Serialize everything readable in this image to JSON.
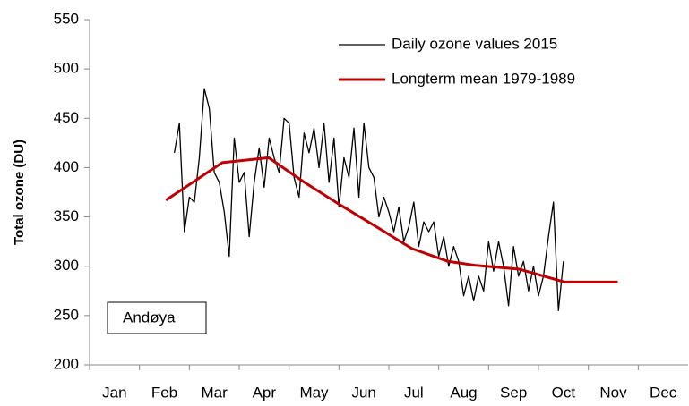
{
  "chart_data": {
    "type": "line",
    "ylabel": "Total ozone  (DU)",
    "annotation": "Andøya",
    "categories": [
      "Jan",
      "Feb",
      "Mar",
      "Apr",
      "May",
      "Jun",
      "Jul",
      "Aug",
      "Sep",
      "Oct",
      "Nov",
      "Dec"
    ],
    "xlim": [
      0,
      12
    ],
    "ylim": [
      200,
      550
    ],
    "yticks": [
      200,
      250,
      300,
      350,
      400,
      450,
      500,
      550
    ],
    "grid": false,
    "legend": "upper right",
    "series": [
      {
        "name": "Daily ozone values 2015",
        "color": "#000000",
        "x": [
          1.7,
          1.8,
          1.9,
          2.0,
          2.1,
          2.2,
          2.3,
          2.4,
          2.5,
          2.6,
          2.7,
          2.8,
          2.9,
          3.0,
          3.1,
          3.2,
          3.3,
          3.4,
          3.5,
          3.6,
          3.7,
          3.8,
          3.9,
          4.0,
          4.1,
          4.2,
          4.3,
          4.4,
          4.5,
          4.6,
          4.7,
          4.8,
          4.9,
          5.0,
          5.1,
          5.2,
          5.3,
          5.4,
          5.5,
          5.6,
          5.7,
          5.8,
          5.9,
          6.0,
          6.1,
          6.2,
          6.3,
          6.4,
          6.5,
          6.6,
          6.7,
          6.8,
          6.9,
          7.0,
          7.1,
          7.2,
          7.3,
          7.4,
          7.5,
          7.6,
          7.7,
          7.8,
          7.9,
          8.0,
          8.1,
          8.2,
          8.3,
          8.4,
          8.5,
          8.6,
          8.7,
          8.8,
          8.9,
          9.0,
          9.1,
          9.2,
          9.3,
          9.4,
          9.5
        ],
        "values": [
          415,
          445,
          335,
          370,
          365,
          410,
          480,
          460,
          395,
          385,
          355,
          310,
          430,
          385,
          395,
          330,
          385,
          420,
          380,
          430,
          410,
          395,
          450,
          445,
          390,
          370,
          435,
          415,
          440,
          400,
          445,
          385,
          430,
          360,
          410,
          390,
          440,
          370,
          445,
          400,
          390,
          350,
          370,
          355,
          335,
          360,
          325,
          340,
          365,
          320,
          345,
          335,
          345,
          310,
          330,
          300,
          320,
          305,
          270,
          290,
          265,
          290,
          275,
          325,
          295,
          325,
          300,
          260,
          320,
          290,
          305,
          275,
          300,
          270,
          290,
          330,
          365,
          255,
          305
        ]
      },
      {
        "name": "Longterm mean 1979-1989",
        "color": "#c00000",
        "x": [
          1.53,
          2.66,
          3.59,
          4.31,
          5.03,
          5.75,
          6.46,
          7.18,
          7.72,
          8.62,
          9.52,
          10.59
        ],
        "values": [
          367,
          405,
          410,
          385,
          362,
          340,
          318,
          305,
          301,
          297,
          284,
          284
        ]
      }
    ]
  }
}
